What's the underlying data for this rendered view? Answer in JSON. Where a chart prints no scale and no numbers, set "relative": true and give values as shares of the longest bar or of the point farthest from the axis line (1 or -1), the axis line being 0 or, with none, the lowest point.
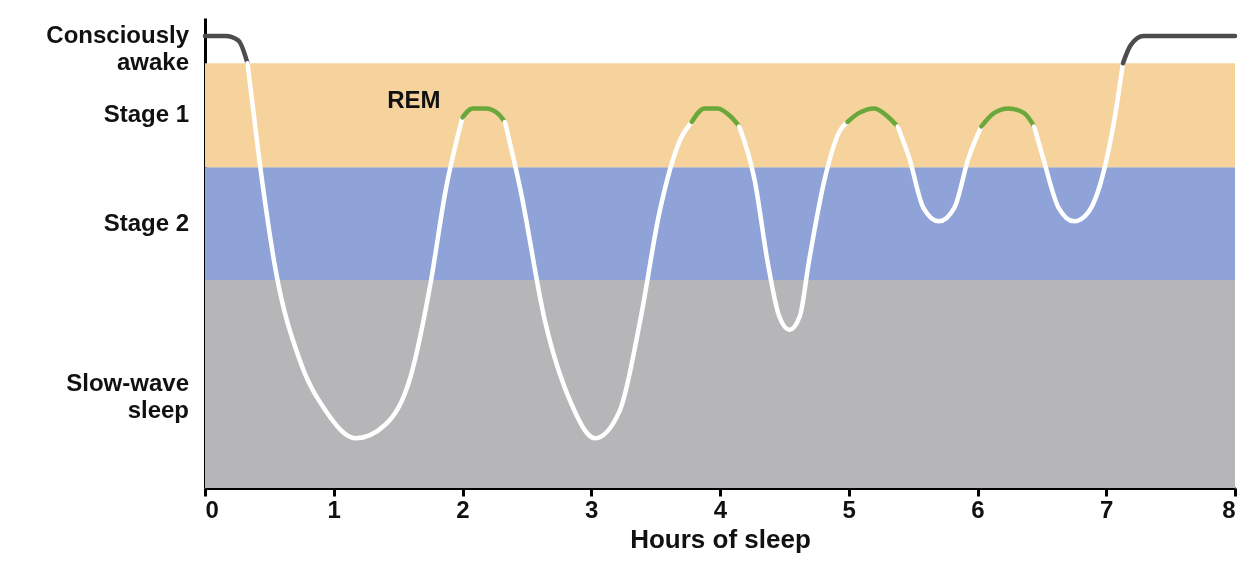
{
  "chart_data": {
    "type": "line",
    "xlabel": "Hours of sleep",
    "relative": true,
    "annotations": [
      {
        "text": "Consciously awake",
        "x": 0,
        "y": 1
      },
      {
        "text": "REM",
        "x": 2.0,
        "y": 0.82
      }
    ],
    "xlim": [
      0,
      8
    ],
    "xticks": [
      0,
      1,
      2,
      3,
      4,
      5,
      6,
      7,
      8
    ],
    "bands": [
      {
        "axis": "y",
        "from": 0,
        "to": 0.46,
        "color": "#b6b6b8",
        "label": "Slow-wave sleep"
      },
      {
        "axis": "y",
        "from": 0.46,
        "to": 0.71,
        "color": "#8fa3d8",
        "label": "Stage 2"
      },
      {
        "axis": "y",
        "from": 0.71,
        "to": 0.94,
        "color": "#f6d29d",
        "label": "Stage 1"
      }
    ],
    "line_style": "solid",
    "marker": "none",
    "series": [
      {
        "color": "#4d4d4f",
        "x": [
          0,
          0.16,
          0.26,
          0.33
        ],
        "values": [
          1,
          1,
          0.99,
          0.94
        ]
      },
      {
        "color": "#ffffff",
        "x": [
          0.33,
          0.42,
          0.55,
          0.74,
          0.94,
          1.17,
          1.4,
          1.6,
          1.75,
          1.87,
          2.0
        ],
        "values": [
          0.94,
          0.73,
          0.48,
          0.28,
          0.17,
          0.11,
          0.14,
          0.25,
          0.45,
          0.66,
          0.82
        ]
      },
      {
        "color": "#6aa83b",
        "x": [
          2.0,
          2.08,
          2.18,
          2.27,
          2.33
        ],
        "values": [
          0.82,
          0.84,
          0.84,
          0.83,
          0.81
        ]
      },
      {
        "color": "#ffffff",
        "x": [
          2.33,
          2.45,
          2.64,
          2.84,
          3.03,
          3.22,
          3.38,
          3.53,
          3.69,
          3.78
        ],
        "values": [
          0.81,
          0.66,
          0.37,
          0.19,
          0.11,
          0.17,
          0.37,
          0.61,
          0.77,
          0.81
        ]
      },
      {
        "color": "#6aa83b",
        "x": [
          3.78,
          3.88,
          3.98,
          4.09,
          4.15
        ],
        "values": [
          0.81,
          0.84,
          0.84,
          0.82,
          0.8
        ]
      },
      {
        "color": "#ffffff",
        "x": [
          4.15,
          4.27,
          4.37,
          4.46,
          4.54,
          4.62,
          4.69,
          4.81,
          4.93,
          4.99
        ],
        "values": [
          0.8,
          0.68,
          0.5,
          0.38,
          0.35,
          0.38,
          0.5,
          0.68,
          0.79,
          0.81
        ]
      },
      {
        "color": "#6aa83b",
        "x": [
          4.99,
          5.08,
          5.2,
          5.31,
          5.38
        ],
        "values": [
          0.81,
          0.83,
          0.84,
          0.82,
          0.8
        ]
      },
      {
        "color": "#ffffff",
        "x": [
          5.38,
          5.47,
          5.58,
          5.7,
          5.82,
          5.93,
          6.03
        ],
        "values": [
          0.8,
          0.73,
          0.62,
          0.59,
          0.62,
          0.73,
          0.8
        ]
      },
      {
        "color": "#6aa83b",
        "x": [
          6.03,
          6.13,
          6.24,
          6.36,
          6.44
        ],
        "values": [
          0.8,
          0.83,
          0.84,
          0.83,
          0.8
        ]
      },
      {
        "color": "#ffffff",
        "x": [
          6.44,
          6.51,
          6.63,
          6.75,
          6.86,
          6.98,
          7.06,
          7.13
        ],
        "values": [
          0.8,
          0.73,
          0.62,
          0.59,
          0.61,
          0.7,
          0.81,
          0.94
        ]
      },
      {
        "color": "#4d4d4f",
        "x": [
          7.13,
          7.19,
          7.29,
          7.48,
          8.0
        ],
        "values": [
          0.94,
          0.98,
          1,
          1,
          1
        ]
      }
    ]
  }
}
